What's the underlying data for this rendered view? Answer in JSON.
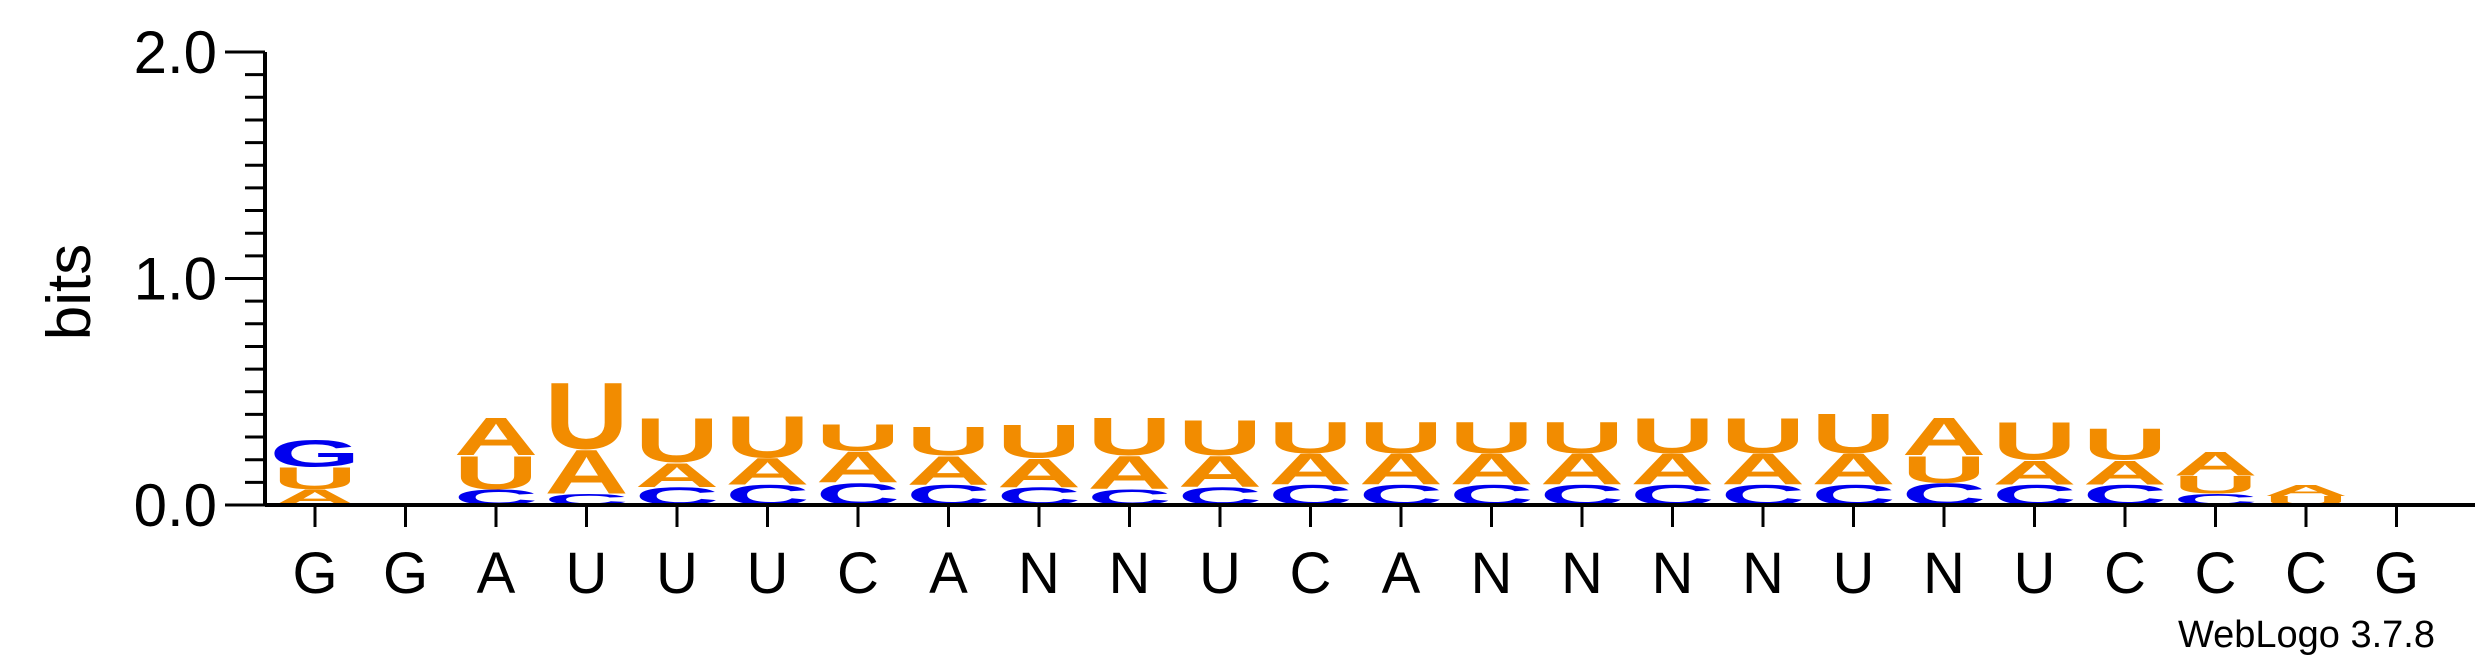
{
  "chart_data": {
    "type": "sequence-logo",
    "ylabel": "bits",
    "ylim": [
      0,
      2.0
    ],
    "yticks": [
      {
        "value": 0.0,
        "label": "0.0"
      },
      {
        "value": 1.0,
        "label": "1.0"
      },
      {
        "value": 2.0,
        "label": "2.0"
      }
    ],
    "consensus": [
      "G",
      "G",
      "A",
      "U",
      "U",
      "U",
      "C",
      "A",
      "N",
      "N",
      "U",
      "C",
      "A",
      "N",
      "N",
      "N",
      "N",
      "U",
      "N",
      "U",
      "C",
      "C",
      "C",
      "G"
    ],
    "colors": {
      "U": "#f28c00",
      "A": "#f28c00",
      "C": "#0000ee",
      "G": "#0000ee"
    },
    "columns": [
      {
        "stack": [
          [
            "A",
            0.07
          ],
          [
            "U",
            0.1
          ],
          [
            "G",
            0.12
          ]
        ]
      },
      {
        "stack": []
      },
      {
        "stack": [
          [
            "C",
            0.07
          ],
          [
            "U",
            0.15
          ],
          [
            "A",
            0.17
          ]
        ]
      },
      {
        "stack": [
          [
            "C",
            0.05
          ],
          [
            "A",
            0.2
          ],
          [
            "U",
            0.3
          ]
        ]
      },
      {
        "stack": [
          [
            "C",
            0.08
          ],
          [
            "A",
            0.11
          ],
          [
            "U",
            0.2
          ]
        ]
      },
      {
        "stack": [
          [
            "C",
            0.09
          ],
          [
            "A",
            0.12
          ],
          [
            "U",
            0.19
          ]
        ]
      },
      {
        "stack": [
          [
            "C",
            0.1
          ],
          [
            "A",
            0.14
          ],
          [
            "U",
            0.12
          ]
        ]
      },
      {
        "stack": [
          [
            "C",
            0.09
          ],
          [
            "A",
            0.13
          ],
          [
            "U",
            0.13
          ]
        ]
      },
      {
        "stack": [
          [
            "C",
            0.08
          ],
          [
            "A",
            0.13
          ],
          [
            "U",
            0.15
          ]
        ]
      },
      {
        "stack": [
          [
            "C",
            0.07
          ],
          [
            "A",
            0.15
          ],
          [
            "U",
            0.17
          ]
        ]
      },
      {
        "stack": [
          [
            "C",
            0.08
          ],
          [
            "A",
            0.14
          ],
          [
            "U",
            0.16
          ]
        ]
      },
      {
        "stack": [
          [
            "C",
            0.09
          ],
          [
            "A",
            0.14
          ],
          [
            "U",
            0.14
          ]
        ]
      },
      {
        "stack": [
          [
            "C",
            0.09
          ],
          [
            "A",
            0.14
          ],
          [
            "U",
            0.14
          ]
        ]
      },
      {
        "stack": [
          [
            "C",
            0.09
          ],
          [
            "A",
            0.14
          ],
          [
            "U",
            0.14
          ]
        ]
      },
      {
        "stack": [
          [
            "C",
            0.09
          ],
          [
            "A",
            0.14
          ],
          [
            "U",
            0.14
          ]
        ]
      },
      {
        "stack": [
          [
            "C",
            0.09
          ],
          [
            "A",
            0.14
          ],
          [
            "U",
            0.16
          ]
        ]
      },
      {
        "stack": [
          [
            "C",
            0.09
          ],
          [
            "A",
            0.14
          ],
          [
            "U",
            0.16
          ]
        ]
      },
      {
        "stack": [
          [
            "C",
            0.09
          ],
          [
            "A",
            0.14
          ],
          [
            "U",
            0.18
          ]
        ]
      },
      {
        "stack": [
          [
            "C",
            0.1
          ],
          [
            "U",
            0.12
          ],
          [
            "A",
            0.17
          ]
        ]
      },
      {
        "stack": [
          [
            "C",
            0.09
          ],
          [
            "A",
            0.11
          ],
          [
            "U",
            0.17
          ]
        ]
      },
      {
        "stack": [
          [
            "C",
            0.09
          ],
          [
            "A",
            0.11
          ],
          [
            "U",
            0.14
          ]
        ]
      },
      {
        "stack": [
          [
            "C",
            0.05
          ],
          [
            "U",
            0.08
          ],
          [
            "A",
            0.11
          ]
        ]
      },
      {
        "stack": [
          [
            "U",
            0.04
          ],
          [
            "A",
            0.05
          ]
        ]
      },
      {
        "stack": []
      }
    ]
  },
  "credit": "WebLogo 3.7.8"
}
